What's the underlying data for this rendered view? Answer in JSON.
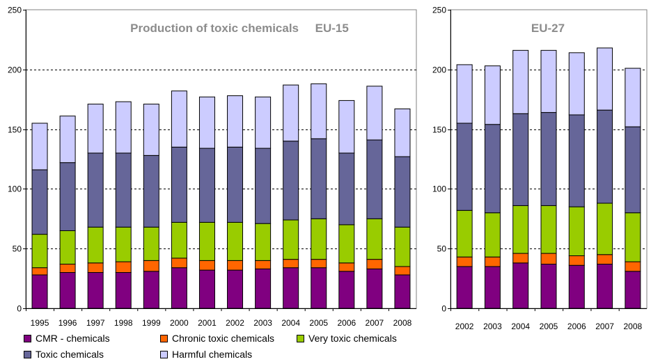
{
  "chart_data": [
    {
      "type": "bar",
      "stacked": true,
      "title": "Production of toxic chemicals     EU-15",
      "categories": [
        "1995",
        "1996",
        "1997",
        "1998",
        "1999",
        "2000",
        "2001",
        "2002",
        "2003",
        "2004",
        "2005",
        "2006",
        "2007",
        "2008"
      ],
      "ylim": [
        0,
        250
      ],
      "yticks": [
        0,
        50,
        100,
        150,
        200,
        250
      ],
      "grid": true,
      "series": [
        {
          "name": "CMR - chemicals",
          "color": "#800080",
          "values": [
            28,
            30,
            30,
            30,
            31,
            34,
            32,
            32,
            33,
            34,
            34,
            31,
            33,
            28
          ]
        },
        {
          "name": "Chronic toxic chemicals",
          "color": "#ff6600",
          "values": [
            6,
            7,
            8,
            9,
            9,
            8,
            8,
            8,
            7,
            7,
            7,
            7,
            8,
            7
          ]
        },
        {
          "name": "Very toxic chemicals",
          "color": "#99cc00",
          "values": [
            28,
            28,
            30,
            29,
            28,
            30,
            32,
            32,
            31,
            33,
            34,
            32,
            34,
            33
          ]
        },
        {
          "name": "Toxic chemicals",
          "color": "#666699",
          "values": [
            54,
            57,
            62,
            62,
            60,
            63,
            62,
            63,
            63,
            66,
            67,
            60,
            66,
            59
          ]
        },
        {
          "name": "Harmful chemicals",
          "color": "#ccccff",
          "values": [
            39,
            39,
            41,
            43,
            43,
            47,
            43,
            43,
            43,
            47,
            46,
            44,
            45,
            40
          ]
        }
      ]
    },
    {
      "type": "bar",
      "stacked": true,
      "title": "EU-27",
      "categories": [
        "2002",
        "2003",
        "2004",
        "2005",
        "2006",
        "2007",
        "2008"
      ],
      "ylim": [
        0,
        250
      ],
      "yticks": [
        0,
        50,
        100,
        150,
        200,
        250
      ],
      "grid": true,
      "series": [
        {
          "name": "CMR - chemicals",
          "color": "#800080",
          "values": [
            35,
            35,
            38,
            37,
            36,
            37,
            31
          ]
        },
        {
          "name": "Chronic toxic chemicals",
          "color": "#ff6600",
          "values": [
            8,
            8,
            8,
            9,
            8,
            8,
            8
          ]
        },
        {
          "name": "Very toxic chemicals",
          "color": "#99cc00",
          "values": [
            39,
            37,
            40,
            40,
            41,
            43,
            41
          ]
        },
        {
          "name": "Toxic chemicals",
          "color": "#666699",
          "values": [
            73,
            74,
            77,
            78,
            77,
            78,
            72
          ]
        },
        {
          "name": "Harmful chemicals",
          "color": "#ccccff",
          "values": [
            49,
            49,
            53,
            52,
            52,
            52,
            49
          ]
        }
      ]
    }
  ],
  "legend": {
    "items": [
      {
        "name": "CMR - chemicals",
        "color": "#800080"
      },
      {
        "name": "Chronic toxic chemicals",
        "color": "#ff6600"
      },
      {
        "name": "Very toxic chemicals",
        "color": "#99cc00"
      },
      {
        "name": "Toxic chemicals",
        "color": "#666699"
      },
      {
        "name": "Harmful chemicals",
        "color": "#ccccff"
      }
    ]
  }
}
